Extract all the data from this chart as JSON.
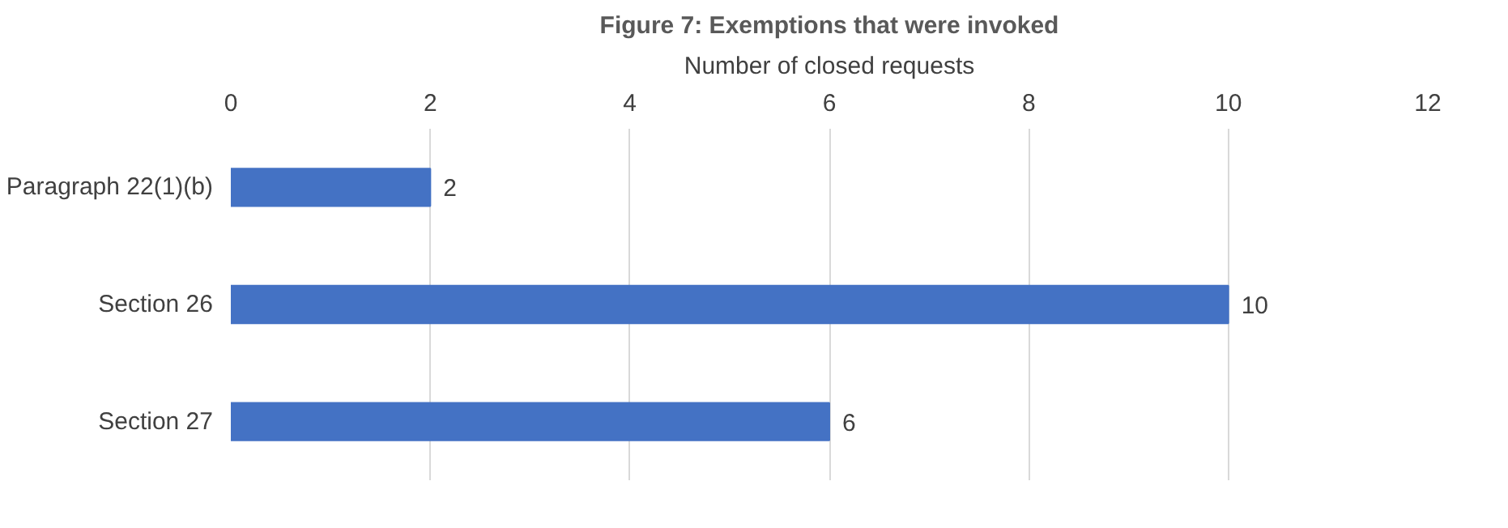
{
  "chart_data": {
    "type": "bar",
    "orientation": "horizontal",
    "title": "Figure 7: Exemptions that were invoked",
    "xlabel": "Number of closed requests",
    "categories": [
      "Paragraph 22(1)(b)",
      "Section 26",
      "Section 27"
    ],
    "values": [
      2,
      10,
      6
    ],
    "color": "#4472c4",
    "xlim": [
      0,
      12
    ],
    "xticks": [
      0,
      2,
      4,
      6,
      8,
      10,
      12
    ],
    "grid": "x",
    "data_labels": true
  }
}
